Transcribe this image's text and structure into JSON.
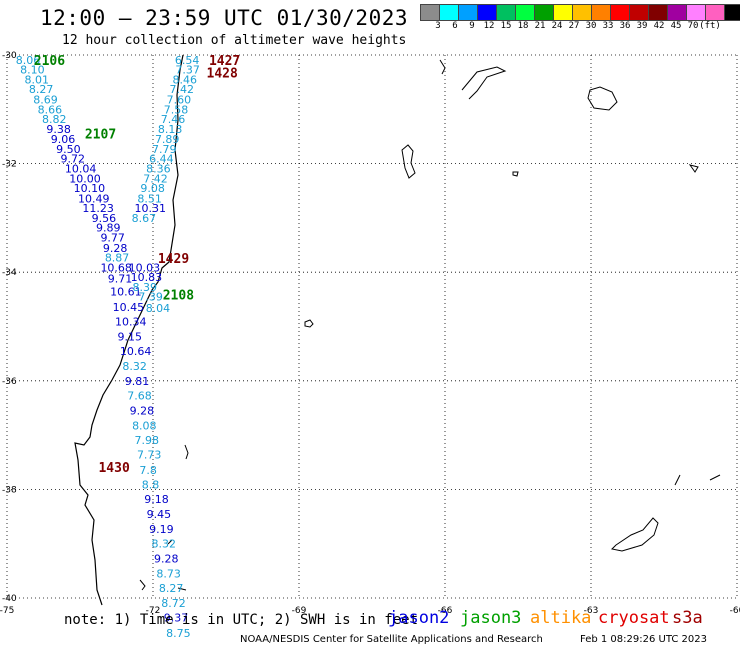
{
  "header": {
    "title": "12:00 – 23:59 UTC 01/30/2023",
    "subtitle": "12 hour collection of altimeter wave heights"
  },
  "color_scale": {
    "colors": [
      "#8c8c8c",
      "#00ffff",
      "#00a0ff",
      "#0000ff",
      "#00c060",
      "#00ff40",
      "#00a000",
      "#ffff00",
      "#ffc000",
      "#ff8000",
      "#ff0000",
      "#c00000",
      "#800000",
      "#a000a0",
      "#ff80ff",
      "#ff60c0",
      "#000000"
    ],
    "labels": [
      "3",
      "6",
      "9",
      "12",
      "15",
      "18",
      "21",
      "24",
      "27",
      "30",
      "33",
      "36",
      "39",
      "42",
      "45",
      "70",
      "(ft)"
    ]
  },
  "axes": {
    "lon_ticks": [
      "-75",
      "-72",
      "-69",
      "-66",
      "-63",
      "-60"
    ],
    "lat_ticks": [
      "-30",
      "-32",
      "-34",
      "-36",
      "-38",
      "-40"
    ]
  },
  "swh_points": [
    {
      "text": "8.06",
      "lon": -74.82,
      "lat": -30.09,
      "color": "#1a9fd4"
    },
    {
      "text": "8.10",
      "lon": -74.73,
      "lat": -30.27,
      "color": "#1a9fd4"
    },
    {
      "text": "8.01",
      "lon": -74.64,
      "lat": -30.45,
      "color": "#1a9fd4"
    },
    {
      "text": "8.27",
      "lon": -74.55,
      "lat": -30.63,
      "color": "#1a9fd4"
    },
    {
      "text": "8.69",
      "lon": -74.46,
      "lat": -30.82,
      "color": "#1a9fd4"
    },
    {
      "text": "8.66",
      "lon": -74.37,
      "lat": -31.0,
      "color": "#1a9fd4"
    },
    {
      "text": "8.82",
      "lon": -74.28,
      "lat": -31.18,
      "color": "#1a9fd4"
    },
    {
      "text": "9.38",
      "lon": -74.19,
      "lat": -31.36,
      "color": "#0000c8"
    },
    {
      "text": "9.06",
      "lon": -74.1,
      "lat": -31.55,
      "color": "#0000c8"
    },
    {
      "text": "9.50",
      "lon": -73.99,
      "lat": -31.73,
      "color": "#0000c8"
    },
    {
      "text": "9.72",
      "lon": -73.9,
      "lat": -31.91,
      "color": "#0000c8"
    },
    {
      "text": "10.04",
      "lon": -73.81,
      "lat": -32.09,
      "color": "#0000c8"
    },
    {
      "text": "10.00",
      "lon": -73.72,
      "lat": -32.27,
      "color": "#0000c8"
    },
    {
      "text": "10.10",
      "lon": -73.63,
      "lat": -32.45,
      "color": "#0000c8"
    },
    {
      "text": "10.49",
      "lon": -73.54,
      "lat": -32.64,
      "color": "#0000c8"
    },
    {
      "text": "11.23",
      "lon": -73.45,
      "lat": -32.82,
      "color": "#0000c8"
    },
    {
      "text": "9.56",
      "lon": -73.26,
      "lat": -33.0,
      "color": "#0000c8"
    },
    {
      "text": "9.89",
      "lon": -73.17,
      "lat": -33.18,
      "color": "#0000c8"
    },
    {
      "text": "9.77",
      "lon": -73.08,
      "lat": -33.36,
      "color": "#0000c8"
    },
    {
      "text": "9.28",
      "lon": -73.03,
      "lat": -33.55,
      "color": "#0000c8"
    },
    {
      "text": "8.87",
      "lon": -72.99,
      "lat": -33.73,
      "color": "#1a9fd4"
    },
    {
      "text": "10.68",
      "lon": -73.08,
      "lat": -33.91,
      "color": "#0000c8"
    },
    {
      "text": "9.71",
      "lon": -72.93,
      "lat": -34.12,
      "color": "#0000c8"
    },
    {
      "text": "10.61",
      "lon": -72.88,
      "lat": -34.36,
      "color": "#0000c8"
    },
    {
      "text": "10.45",
      "lon": -72.83,
      "lat": -34.64,
      "color": "#0000c8"
    },
    {
      "text": "10.34",
      "lon": -72.78,
      "lat": -34.91,
      "color": "#0000c8"
    },
    {
      "text": "9.15",
      "lon": -72.73,
      "lat": -35.18,
      "color": "#0000c8"
    },
    {
      "text": "10.64",
      "lon": -72.68,
      "lat": -35.45,
      "color": "#0000c8"
    },
    {
      "text": "8.32",
      "lon": -72.63,
      "lat": -35.73,
      "color": "#1a9fd4"
    },
    {
      "text": "9.81",
      "lon": -72.58,
      "lat": -36.0,
      "color": "#0000c8"
    },
    {
      "text": "7.68",
      "lon": -72.53,
      "lat": -36.27,
      "color": "#1a9fd4"
    },
    {
      "text": "9.28",
      "lon": -72.48,
      "lat": -36.55,
      "color": "#0000c8"
    },
    {
      "text": "8.08",
      "lon": -72.43,
      "lat": -36.82,
      "color": "#1a9fd4"
    },
    {
      "text": "7.98",
      "lon": -72.38,
      "lat": -37.09,
      "color": "#1a9fd4"
    },
    {
      "text": "7.73",
      "lon": -72.33,
      "lat": -37.36,
      "color": "#1a9fd4"
    },
    {
      "text": "7.8",
      "lon": -72.28,
      "lat": -37.64,
      "color": "#1a9fd4"
    },
    {
      "text": "8.8",
      "lon": -72.23,
      "lat": -37.91,
      "color": "#1a9fd4"
    },
    {
      "text": "9.18",
      "lon": -72.18,
      "lat": -38.18,
      "color": "#0000c8"
    },
    {
      "text": "9.45",
      "lon": -72.13,
      "lat": -38.45,
      "color": "#0000c8"
    },
    {
      "text": "9.19",
      "lon": -72.08,
      "lat": -38.73,
      "color": "#0000c8"
    },
    {
      "text": "8.32",
      "lon": -72.03,
      "lat": -39.0,
      "color": "#1a9fd4"
    },
    {
      "text": "9.28",
      "lon": -71.98,
      "lat": -39.27,
      "color": "#0000c8"
    },
    {
      "text": "8.73",
      "lon": -71.93,
      "lat": -39.55,
      "color": "#1a9fd4"
    },
    {
      "text": "8.27",
      "lon": -71.88,
      "lat": -39.82,
      "color": "#1a9fd4"
    },
    {
      "text": "8.72",
      "lon": -71.83,
      "lat": -40.09,
      "color": "#1a9fd4"
    },
    {
      "text": "9.37",
      "lon": -71.78,
      "lat": -40.36,
      "color": "#0000c8"
    },
    {
      "text": "8.75",
      "lon": -71.73,
      "lat": -40.64,
      "color": "#1a9fd4"
    },
    {
      "text": "6.54",
      "lon": -71.55,
      "lat": -30.09,
      "color": "#1a9fd4"
    },
    {
      "text": "7.37",
      "lon": -71.54,
      "lat": -30.27,
      "color": "#1a9fd4"
    },
    {
      "text": "8.46",
      "lon": -71.6,
      "lat": -30.45,
      "color": "#1a9fd4"
    },
    {
      "text": "7.42",
      "lon": -71.66,
      "lat": -30.63,
      "color": "#1a9fd4"
    },
    {
      "text": "7.60",
      "lon": -71.72,
      "lat": -30.82,
      "color": "#1a9fd4"
    },
    {
      "text": "7.58",
      "lon": -71.78,
      "lat": -31.0,
      "color": "#1a9fd4"
    },
    {
      "text": "7.46",
      "lon": -71.84,
      "lat": -31.18,
      "color": "#1a9fd4"
    },
    {
      "text": "8.13",
      "lon": -71.9,
      "lat": -31.36,
      "color": "#1a9fd4"
    },
    {
      "text": "7.89",
      "lon": -71.96,
      "lat": -31.55,
      "color": "#1a9fd4"
    },
    {
      "text": "7.79",
      "lon": -72.02,
      "lat": -31.73,
      "color": "#1a9fd4"
    },
    {
      "text": "6.44",
      "lon": -72.08,
      "lat": -31.91,
      "color": "#1a9fd4"
    },
    {
      "text": "8.36",
      "lon": -72.14,
      "lat": -32.09,
      "color": "#1a9fd4"
    },
    {
      "text": "7.42",
      "lon": -72.2,
      "lat": -32.27,
      "color": "#1a9fd4"
    },
    {
      "text": "9.08",
      "lon": -72.26,
      "lat": -32.45,
      "color": "#1a9fd4"
    },
    {
      "text": "8.51",
      "lon": -72.32,
      "lat": -32.64,
      "color": "#1a9fd4"
    },
    {
      "text": "10.31",
      "lon": -72.38,
      "lat": -32.82,
      "color": "#0000c8"
    },
    {
      "text": "8.67",
      "lon": -72.44,
      "lat": -33.0,
      "color": "#1a9fd4"
    },
    {
      "text": "10.03",
      "lon": -72.5,
      "lat": -33.91,
      "color": "#0000c8"
    },
    {
      "text": "10.83",
      "lon": -72.46,
      "lat": -34.09,
      "color": "#0000c8"
    },
    {
      "text": "8.39",
      "lon": -72.42,
      "lat": -34.27,
      "color": "#1a9fd4"
    },
    {
      "text": "7.39",
      "lon": -72.3,
      "lat": -34.45,
      "color": "#1a9fd4"
    },
    {
      "text": "8.04",
      "lon": -72.15,
      "lat": -34.66,
      "color": "#1a9fd4"
    }
  ],
  "time_labels": [
    {
      "text": "2106",
      "lon": -74.45,
      "lat": -30.09,
      "color": "#008000"
    },
    {
      "text": "2107",
      "lon": -73.4,
      "lat": -31.45,
      "color": "#008000"
    },
    {
      "text": "2108",
      "lon": -71.8,
      "lat": -34.41,
      "color": "#008000"
    },
    {
      "text": "1427",
      "lon": -70.85,
      "lat": -30.09,
      "color": "#800000"
    },
    {
      "text": "1428",
      "lon": -70.9,
      "lat": -30.32,
      "color": "#800000"
    },
    {
      "text": "1429",
      "lon": -71.9,
      "lat": -33.74,
      "color": "#800000"
    },
    {
      "text": "1430",
      "lon": -73.12,
      "lat": -37.59,
      "color": "#800000"
    }
  ],
  "note": "note: 1) Time is in UTC; 2) SWH is in feet",
  "missions": [
    {
      "name": "jason2",
      "color": "#0000e0"
    },
    {
      "name": "jason3",
      "color": "#00a000"
    },
    {
      "name": "altika",
      "color": "#ff9000"
    },
    {
      "name": "cryosat",
      "color": "#e00000"
    },
    {
      "name": "s3a",
      "color": "#a00000"
    }
  ],
  "footer": {
    "credit": "NOAA/NESDIS Center for Satellite Applications and Research",
    "date": "Feb  1 08:29:26 UTC 2023"
  }
}
